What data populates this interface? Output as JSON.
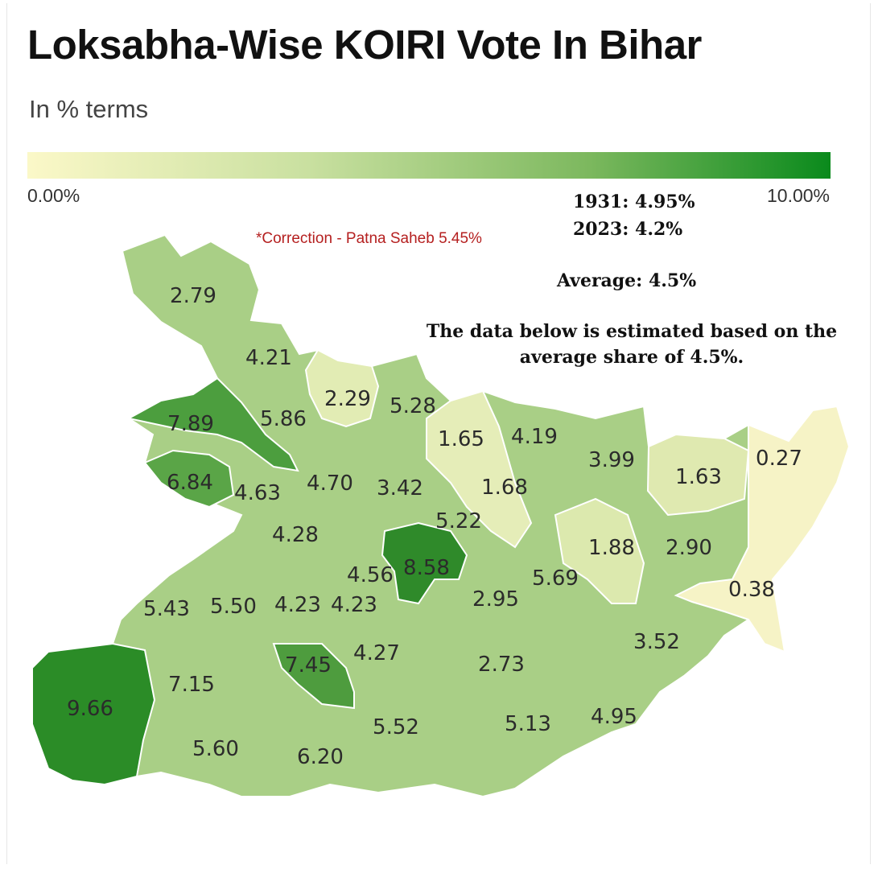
{
  "title": "Loksabha-Wise KOIRI Vote In Bihar",
  "subtitle": "In % terms",
  "legend": {
    "min_label": "0.00%",
    "max_label": "10.00%",
    "min_color": "#fbf8c8",
    "max_color": "#0a8a1c"
  },
  "correction": "*Correction - Patna Saheb 5.45%",
  "notes": {
    "census_1931": "1931: 4.95%",
    "census_2023": "2023: 4.2%",
    "average": "Average: 4.5%",
    "estimate": "The data below is estimated based on the average share of 4.5%."
  },
  "regions": [
    {
      "value": 2.79,
      "label": "2.79"
    },
    {
      "value": 4.21,
      "label": "4.21"
    },
    {
      "value": 2.29,
      "label": "2.29"
    },
    {
      "value": 5.28,
      "label": "5.28"
    },
    {
      "value": 7.89,
      "label": "7.89"
    },
    {
      "value": 5.86,
      "label": "5.86"
    },
    {
      "value": 1.65,
      "label": "1.65"
    },
    {
      "value": 4.19,
      "label": "4.19"
    },
    {
      "value": 3.99,
      "label": "3.99"
    },
    {
      "value": 0.27,
      "label": "0.27"
    },
    {
      "value": 1.63,
      "label": "1.63"
    },
    {
      "value": 6.84,
      "label": "6.84"
    },
    {
      "value": 4.63,
      "label": "4.63"
    },
    {
      "value": 4.7,
      "label": "4.70"
    },
    {
      "value": 3.42,
      "label": "3.42"
    },
    {
      "value": 1.68,
      "label": "1.68"
    },
    {
      "value": 4.28,
      "label": "4.28"
    },
    {
      "value": 5.22,
      "label": "5.22"
    },
    {
      "value": 1.88,
      "label": "1.88"
    },
    {
      "value": 2.9,
      "label": "2.90"
    },
    {
      "value": 8.58,
      "label": "8.58"
    },
    {
      "value": 4.56,
      "label": "4.56"
    },
    {
      "value": 5.69,
      "label": "5.69"
    },
    {
      "value": 0.38,
      "label": "0.38"
    },
    {
      "value": 5.43,
      "label": "5.43"
    },
    {
      "value": 5.5,
      "label": "5.50"
    },
    {
      "value": 4.23,
      "label": "4.23"
    },
    {
      "value": 4.23,
      "label": "4.23"
    },
    {
      "value": 2.95,
      "label": "2.95"
    },
    {
      "value": 3.52,
      "label": "3.52"
    },
    {
      "value": 7.45,
      "label": "7.45"
    },
    {
      "value": 4.27,
      "label": "4.27"
    },
    {
      "value": 2.73,
      "label": "2.73"
    },
    {
      "value": 9.66,
      "label": "9.66"
    },
    {
      "value": 7.15,
      "label": "7.15"
    },
    {
      "value": 5.52,
      "label": "5.52"
    },
    {
      "value": 5.13,
      "label": "5.13"
    },
    {
      "value": 4.95,
      "label": "4.95"
    },
    {
      "value": 5.6,
      "label": "5.60"
    },
    {
      "value": 6.2,
      "label": "6.20"
    }
  ]
}
